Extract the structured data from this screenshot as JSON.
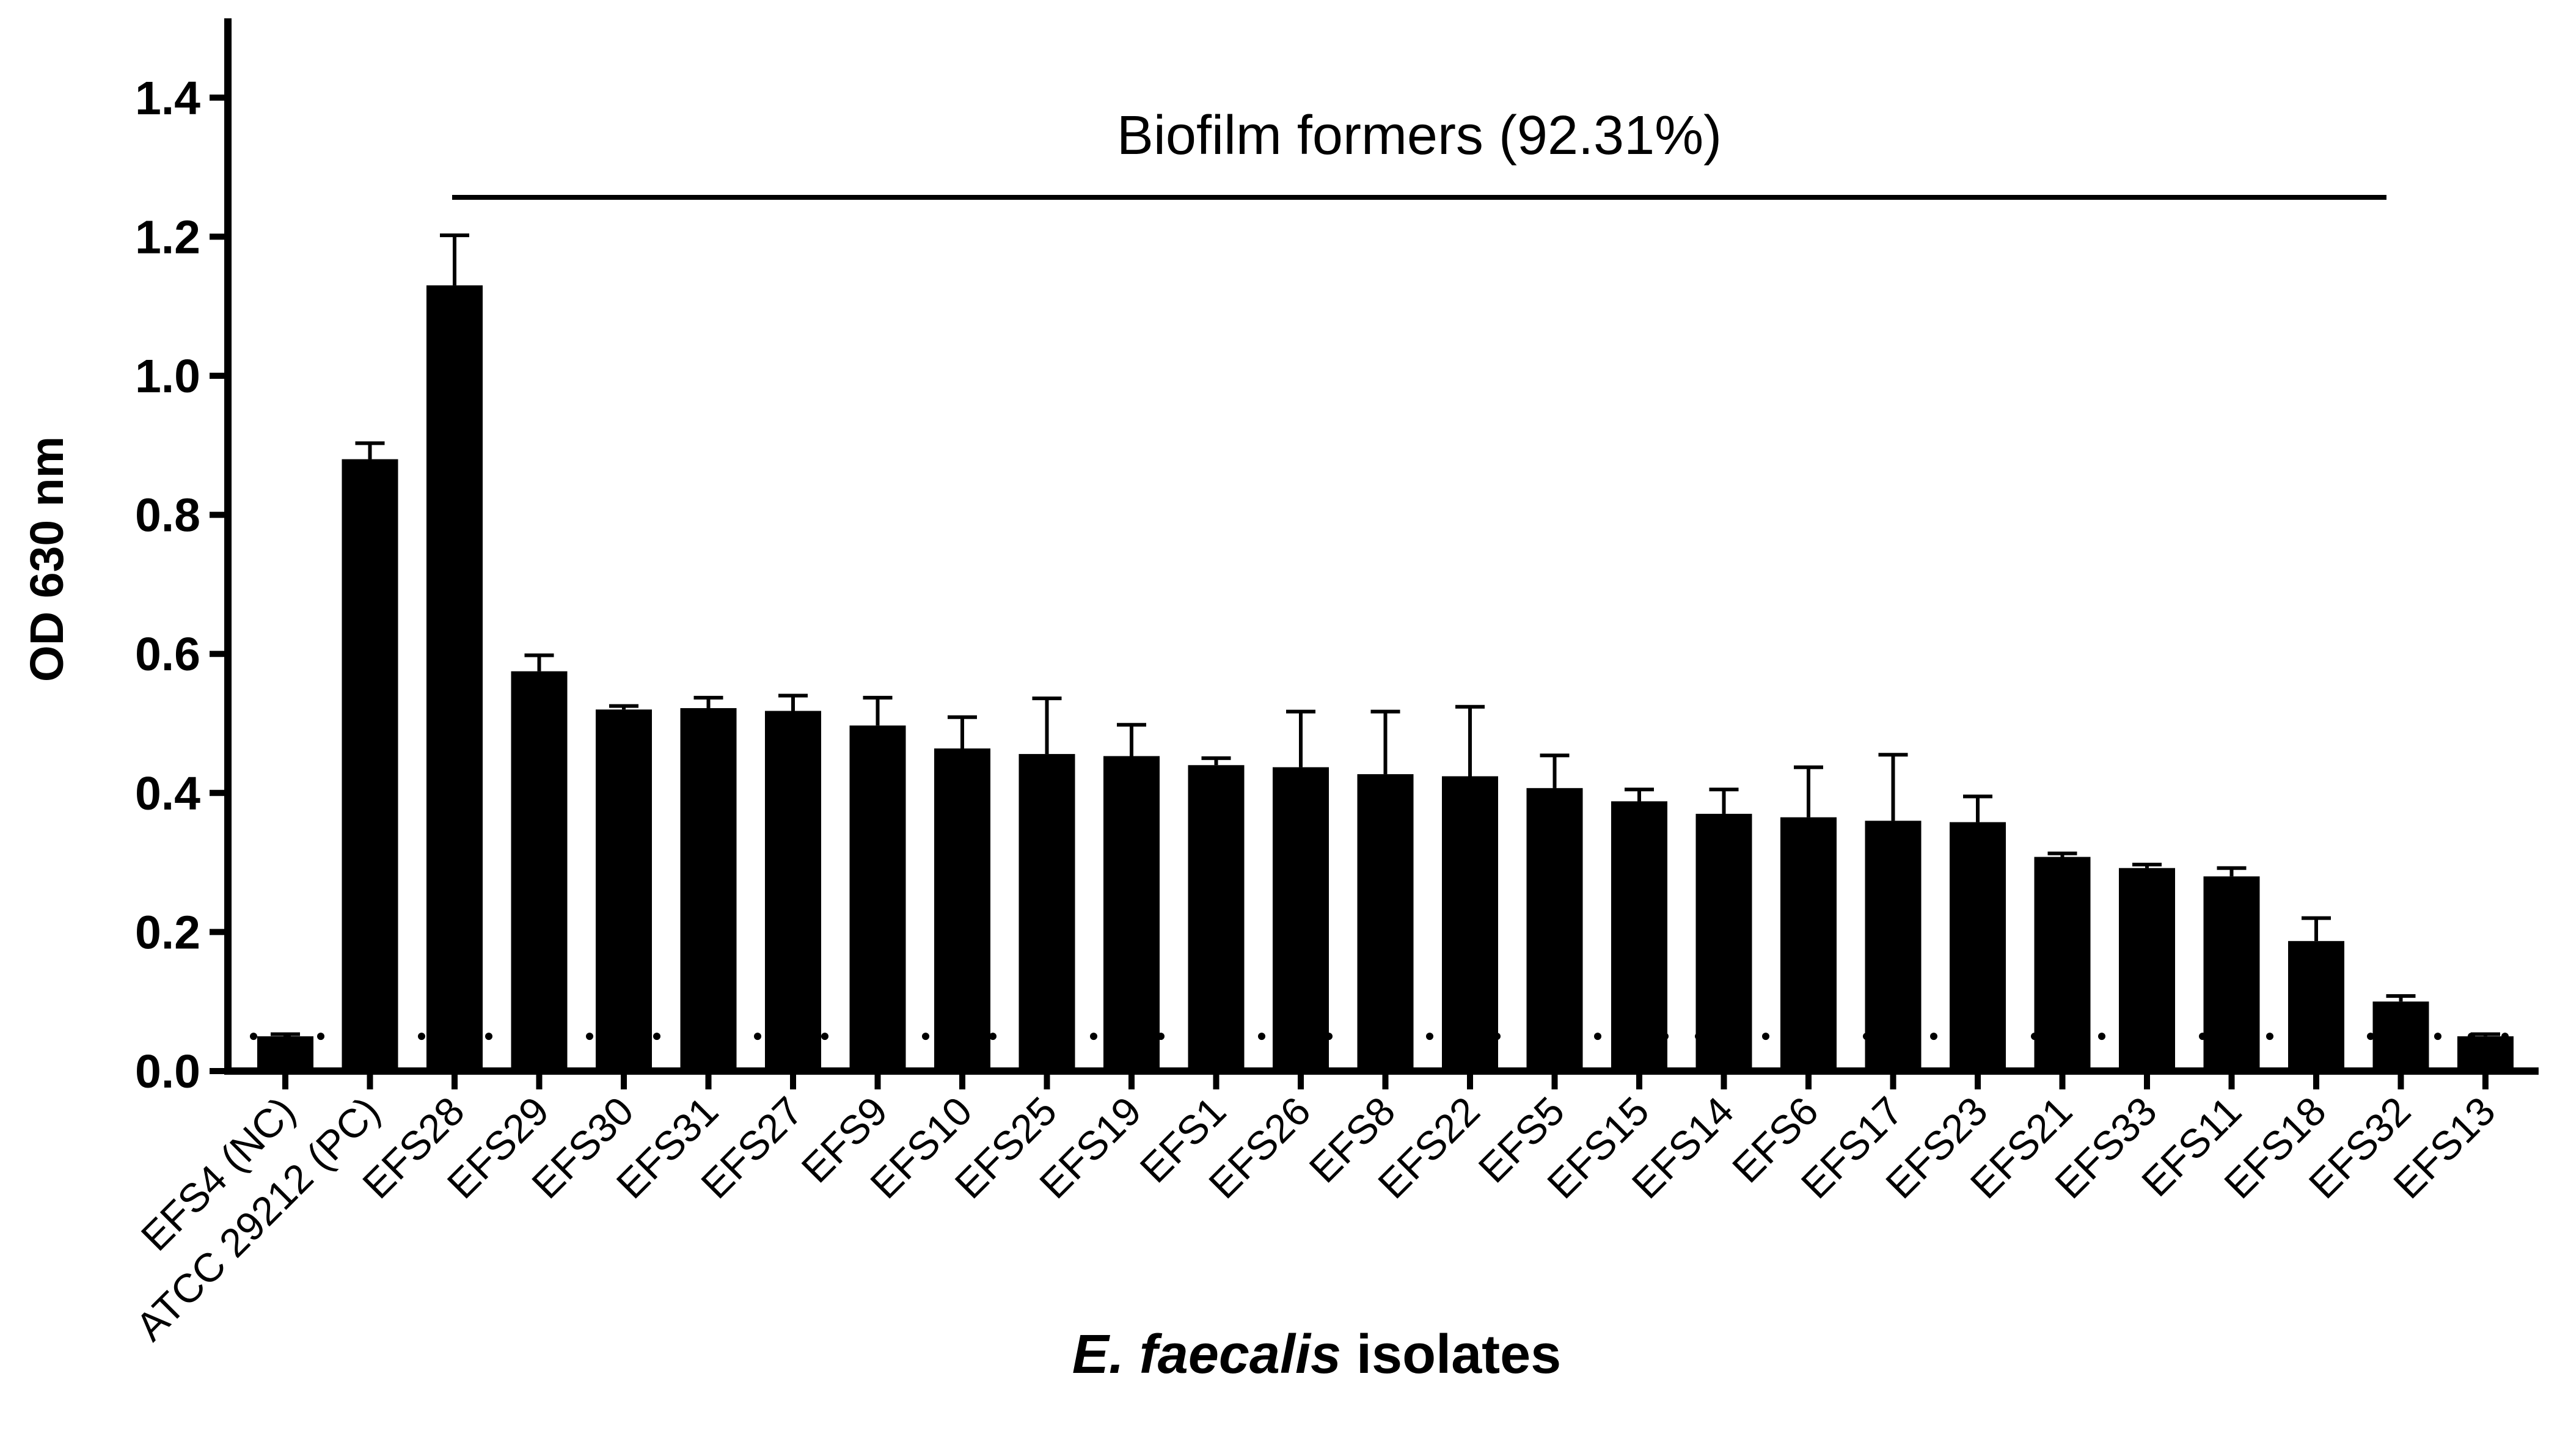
{
  "chart_data": {
    "type": "bar",
    "ylabel": "OD 630 nm",
    "xlabel_italic": "E. faecalis",
    "xlabel_rest": " isolates",
    "ylim": [
      0,
      1.5
    ],
    "yticks": [
      "0.0",
      "0.2",
      "0.4",
      "0.6",
      "0.8",
      "1.0",
      "1.2",
      "1.4"
    ],
    "grid": false,
    "legend": "none",
    "annotation": "Biofilm formers (92.31%)",
    "cutoff": 0.05,
    "bar_color": "#000000",
    "categories": [
      "EFS4 (NC)",
      "ATCC 29212 (PC)",
      "EFS28",
      "EFS29",
      "EFS30",
      "EFS31",
      "EFS27",
      "EFS9",
      "EFS10",
      "EFS25",
      "EFS19",
      "EFS1",
      "EFS26",
      "EFS8",
      "EFS22",
      "EFS5",
      "EFS15",
      "EFS14",
      "EFS6",
      "EFS17",
      "EFS23",
      "EFS21",
      "EFS33",
      "EFS11",
      "EFS18",
      "EFS32",
      "EFS13"
    ],
    "values": [
      0.05,
      0.88,
      1.13,
      0.575,
      0.52,
      0.522,
      0.518,
      0.497,
      0.464,
      0.456,
      0.453,
      0.44,
      0.437,
      0.427,
      0.424,
      0.407,
      0.388,
      0.37,
      0.365,
      0.36,
      0.358,
      0.308,
      0.292,
      0.28,
      0.187,
      0.1,
      0.05
    ],
    "errors": [
      0.003,
      0.023,
      0.072,
      0.023,
      0.005,
      0.015,
      0.022,
      0.04,
      0.045,
      0.08,
      0.045,
      0.01,
      0.08,
      0.09,
      0.1,
      0.047,
      0.017,
      0.035,
      0.072,
      0.095,
      0.037,
      0.005,
      0.005,
      0.012,
      0.033,
      0.008,
      0.003
    ]
  }
}
